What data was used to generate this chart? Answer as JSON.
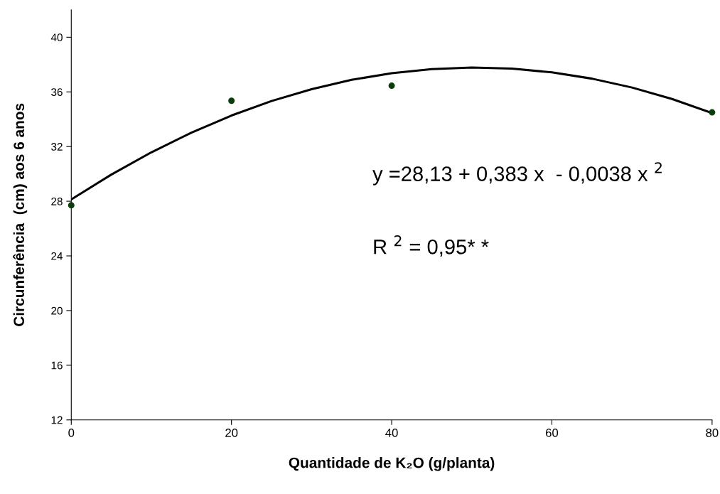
{
  "chart_data": {
    "type": "scatter",
    "xlabel": "Quantidade de K₂O (g/planta)",
    "ylabel": "Circunferência  (cm) aos 6 anos",
    "xlim": [
      0,
      80
    ],
    "xticks": [
      0,
      20,
      40,
      60,
      80
    ],
    "ylim": [
      12,
      42
    ],
    "yticks": [
      12,
      16,
      20,
      24,
      28,
      32,
      36,
      40
    ],
    "grid": false,
    "legend": false,
    "series": [
      {
        "color": "#0b3d0b",
        "marker": "circle",
        "x": [
          0,
          20,
          40,
          80
        ],
        "values": [
          27.7,
          35.35,
          36.45,
          34.5
        ]
      },
      {
        "type": "line",
        "color": "#000000",
        "marker": "none",
        "line_style": "solid",
        "x": [
          0,
          5,
          10,
          15,
          20,
          25,
          30,
          35,
          40,
          45,
          50,
          55,
          60,
          65,
          70,
          75,
          80
        ],
        "values": [
          28.13,
          29.95,
          31.58,
          33.02,
          34.27,
          35.33,
          36.2,
          36.88,
          37.37,
          37.67,
          37.78,
          37.7,
          37.43,
          36.97,
          36.32,
          35.48,
          34.45
        ]
      }
    ],
    "annotations": [
      "y =28,13 + 0,383 x  - 0,0038 x $^{2}$",
      "R $^{2}$ = 0,95* *"
    ]
  }
}
